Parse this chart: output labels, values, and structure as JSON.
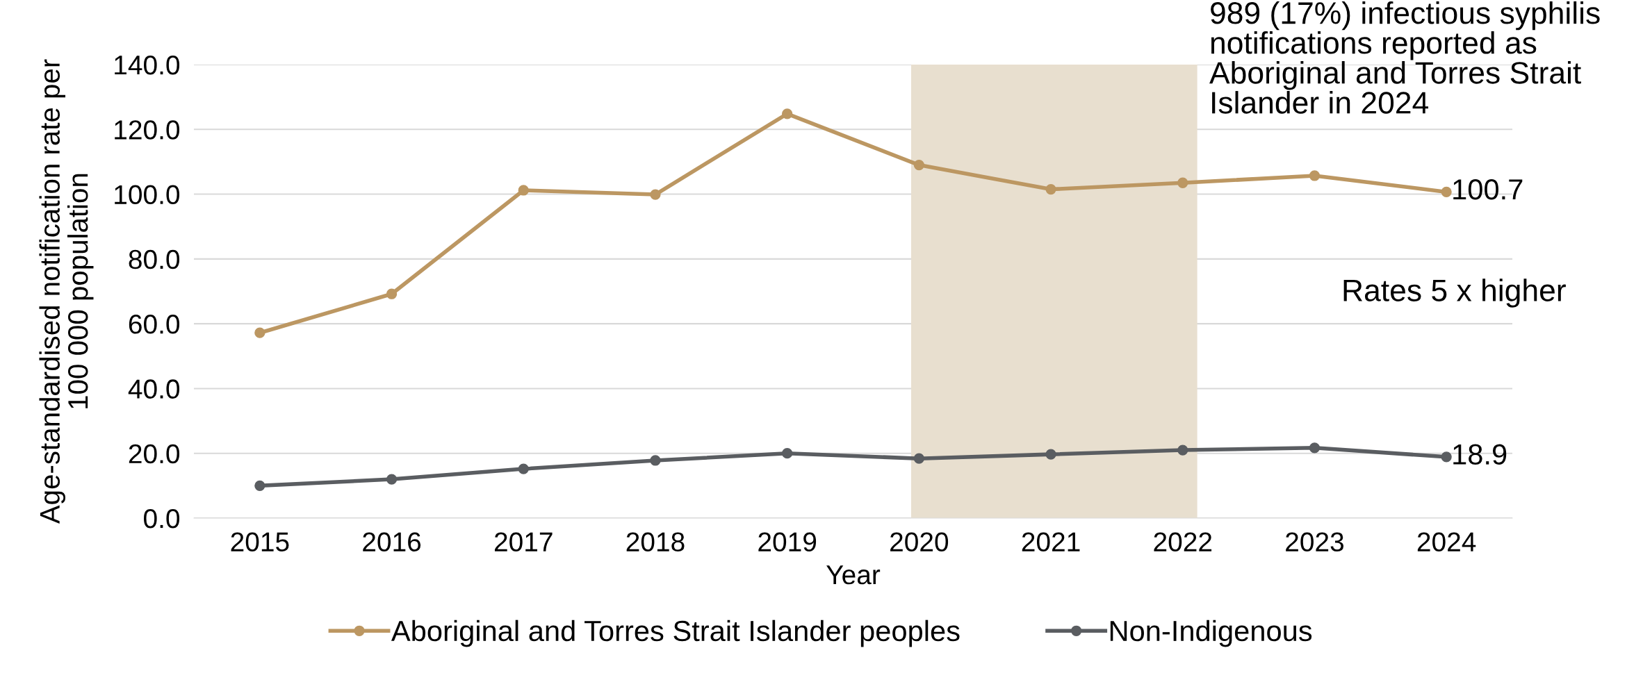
{
  "chart_data": {
    "type": "line",
    "xlabel": "Year",
    "ylabel": "Age-standardised notification rate per\n100 000 population",
    "x": [
      2015,
      2016,
      2017,
      2018,
      2019,
      2020,
      2021,
      2022,
      2023,
      2024
    ],
    "xlim": [
      2014.5,
      2024.5
    ],
    "xticks": [
      2015,
      2016,
      2017,
      2018,
      2019,
      2020,
      2021,
      2022,
      2023,
      2024
    ],
    "ylim": [
      0,
      140
    ],
    "yticks": [
      {
        "value": 0,
        "label": "0.0"
      },
      {
        "value": 20,
        "label": "20.0"
      },
      {
        "value": 40,
        "label": "40.0"
      },
      {
        "value": 60,
        "label": "60.0"
      },
      {
        "value": 80,
        "label": "80.0"
      },
      {
        "value": 100,
        "label": "100.0"
      },
      {
        "value": 120,
        "label": "120.0"
      },
      {
        "value": 140,
        "label": "140.0"
      }
    ],
    "series": [
      {
        "name": "Aboriginal and Torres Strait Islander peoples",
        "color": "#bc9762",
        "values": [
          57.2,
          69.2,
          101.2,
          99.9,
          124.8,
          109.0,
          101.5,
          103.5,
          105.7,
          100.7
        ],
        "value_labels": [
          null,
          null,
          null,
          null,
          null,
          null,
          null,
          null,
          null,
          "100.7"
        ]
      },
      {
        "name": "Non-Indigenous",
        "color": "#5a5d61",
        "values": [
          10.0,
          12.0,
          15.2,
          17.8,
          20.0,
          18.4,
          19.7,
          21.0,
          21.7,
          18.9
        ],
        "value_labels": [
          null,
          null,
          null,
          null,
          null,
          null,
          null,
          null,
          null,
          "18.9"
        ]
      }
    ],
    "bands": [
      {
        "axis": "x",
        "from": 2019.94,
        "to": 2022.11,
        "color": "#e8dfcf"
      }
    ],
    "annotations": [
      "989 (17%) infectious syphilis\nnotifications reported as\nAboriginal and Torres Strait\nIslander in 2024",
      "Rates 5 x higher"
    ],
    "grid": "y",
    "legend": "bottom",
    "marker": "circle",
    "line_style": "solid"
  }
}
